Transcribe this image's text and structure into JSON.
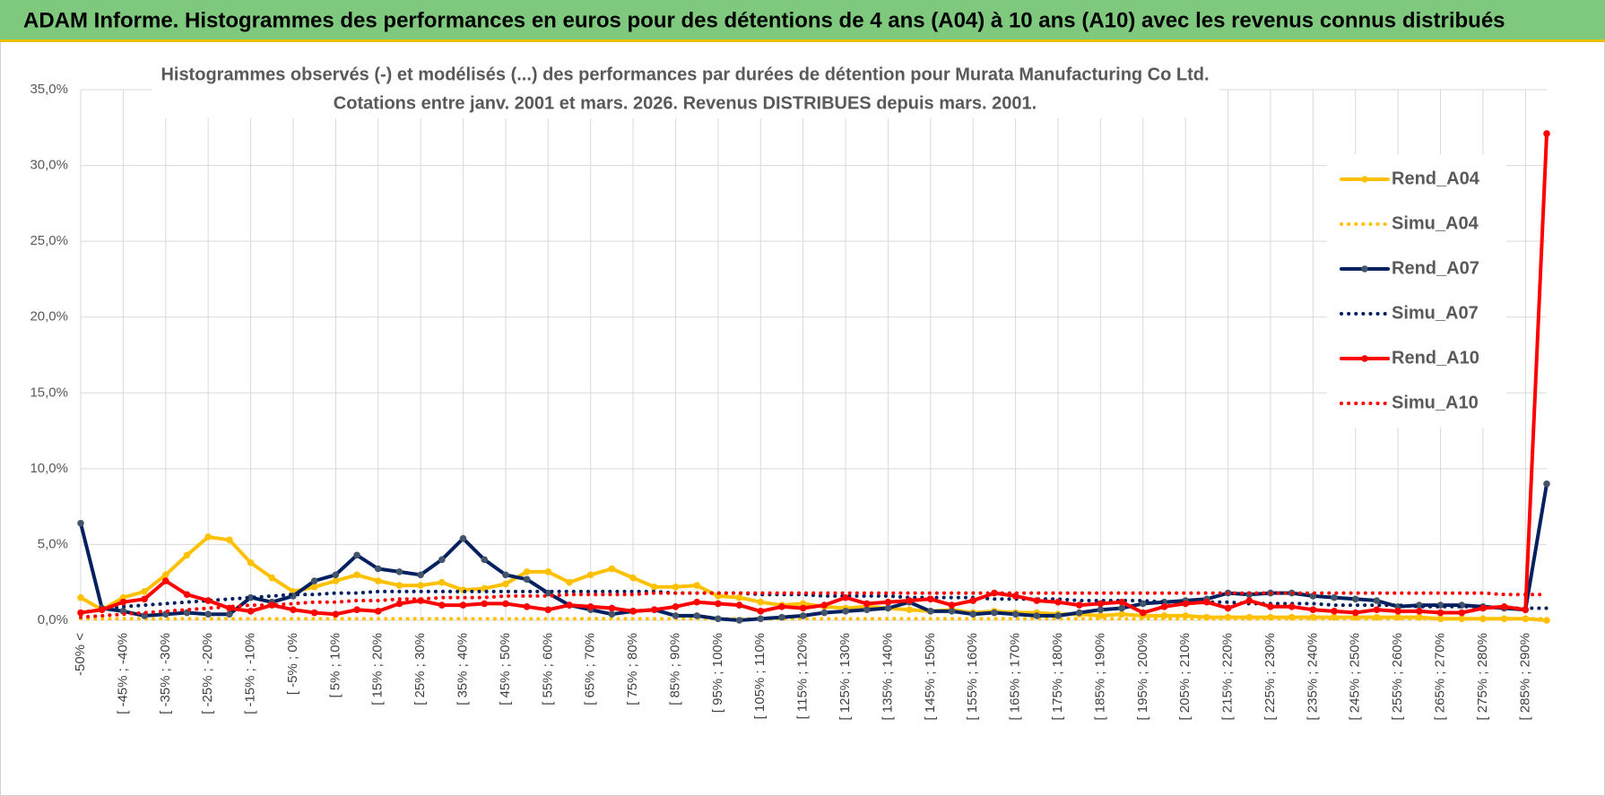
{
  "page_title": "ADAM Informe. Histogrammes des performances en euros pour des détentions de 4 ans (A04) à 10 ans (A10) avec les revenus connus distribués",
  "chart_data": {
    "type": "line",
    "title": "Histogrammes observés (-) et modélisés (...) des performances par durées de détention pour Murata Manufacturing Co Ltd.",
    "subtitle": "Cotations entre janv. 2001 et mars. 2026. Revenus DISTRIBUES depuis mars. 2001.",
    "categories": [
      "-50% <",
      null,
      "[ -45% ; -40%",
      null,
      "[ -35% ; -30%",
      null,
      "[ -25% ; -20%",
      null,
      "[ -15% ; -10%",
      null,
      "[ -5% ; 0%",
      null,
      "[ 5% ; 10%",
      null,
      "[ 15% ; 20%",
      null,
      "[ 25% ; 30%",
      null,
      "[ 35% ; 40%",
      null,
      "[ 45% ; 50%",
      null,
      "[ 55% ; 60%",
      null,
      "[ 65% ; 70%",
      null,
      "[ 75% ; 80%",
      null,
      "[ 85% ; 90%",
      null,
      "[ 95% ; 100%",
      null,
      "[ 105% ; 110%",
      null,
      "[ 115% ; 120%",
      null,
      "[ 125% ; 130%",
      null,
      "[ 135% ; 140%",
      null,
      "[ 145% ; 150%",
      null,
      "[ 155% ; 160%",
      null,
      "[ 165% ; 170%",
      null,
      "[ 175% ; 180%",
      null,
      "[ 185% ; 190%",
      null,
      "[ 195% ; 200%",
      null,
      "[ 205% ; 210%",
      null,
      "[ 215% ; 220%",
      null,
      "[ 225% ; 230%",
      null,
      "[ 235% ; 240%",
      null,
      "[ 245% ; 250%",
      null,
      "[ 255% ; 260%",
      null,
      "[ 265% ; 270%",
      null,
      "[ 275% ; 280%",
      null,
      "[ 285% ; 290%",
      null
    ],
    "ylim": [
      0,
      35
    ],
    "yticks": [
      {
        "value": 0,
        "label": "0,0%"
      },
      {
        "value": 5,
        "label": "5,0%"
      },
      {
        "value": 10,
        "label": "10,0%"
      },
      {
        "value": 15,
        "label": "15,0%"
      },
      {
        "value": 20,
        "label": "20,0%"
      },
      {
        "value": 25,
        "label": "25,0%"
      },
      {
        "value": 30,
        "label": "30,0%"
      },
      {
        "value": 35,
        "label": "35,0%"
      }
    ],
    "grid": true,
    "legend": "right",
    "series": [
      {
        "name": "Rend_A04",
        "color": "#ffc000",
        "line_style": "solid",
        "values": [
          1.5,
          0.7,
          1.5,
          1.9,
          3.0,
          4.3,
          5.5,
          5.3,
          3.8,
          2.8,
          1.9,
          2.2,
          2.6,
          3.0,
          2.6,
          2.3,
          2.3,
          2.5,
          2.0,
          2.1,
          2.4,
          3.2,
          3.2,
          2.5,
          3.0,
          3.4,
          2.8,
          2.2,
          2.2,
          2.3,
          1.6,
          1.5,
          1.2,
          1.0,
          1.1,
          0.9,
          0.8,
          0.9,
          0.8,
          0.7,
          0.6,
          0.7,
          0.5,
          0.6,
          0.5,
          0.5,
          0.4,
          0.4,
          0.3,
          0.4,
          0.3,
          0.3,
          0.3,
          0.2,
          0.2,
          0.2,
          0.2,
          0.2,
          0.2,
          0.2,
          0.2,
          0.2,
          0.2,
          0.2,
          0.1,
          0.1,
          0.1,
          0.1,
          0.1,
          0.0
        ]
      },
      {
        "name": "Simu_A04",
        "color": "#ffc000",
        "line_style": "dotted",
        "values": [
          0.1,
          0.1,
          0.1,
          0.1,
          0.1,
          0.1,
          0.1,
          0.1,
          0.1,
          0.1,
          0.1,
          0.1,
          0.1,
          0.1,
          0.1,
          0.1,
          0.1,
          0.1,
          0.1,
          0.1,
          0.1,
          0.1,
          0.1,
          0.1,
          0.1,
          0.1,
          0.1,
          0.1,
          0.1,
          0.1,
          0.1,
          0.1,
          0.1,
          0.1,
          0.1,
          0.1,
          0.1,
          0.1,
          0.1,
          0.1,
          0.1,
          0.1,
          0.1,
          0.1,
          0.1,
          0.1,
          0.1,
          0.1,
          0.1,
          0.1,
          0.1,
          0.1,
          0.1,
          0.1,
          0.1,
          0.1,
          0.1,
          0.1,
          0.1,
          0.1,
          0.1,
          0.1,
          0.1,
          0.1,
          0.1,
          0.1,
          0.1,
          0.1,
          0.1,
          0.1
        ]
      },
      {
        "name": "Rend_A07",
        "color": "#002060",
        "line_style": "solid",
        "values": [
          6.4,
          0.8,
          0.6,
          0.3,
          0.4,
          0.5,
          0.4,
          0.4,
          1.5,
          1.2,
          1.6,
          2.6,
          3.0,
          4.3,
          3.4,
          3.2,
          3.0,
          4.0,
          5.4,
          4.0,
          3.0,
          2.7,
          1.8,
          1.0,
          0.7,
          0.4,
          0.6,
          0.7,
          0.3,
          0.3,
          0.1,
          0.0,
          0.1,
          0.2,
          0.3,
          0.5,
          0.6,
          0.7,
          0.8,
          1.2,
          0.6,
          0.6,
          0.4,
          0.5,
          0.4,
          0.3,
          0.3,
          0.5,
          0.7,
          0.8,
          1.1,
          1.2,
          1.3,
          1.4,
          1.8,
          1.7,
          1.8,
          1.8,
          1.6,
          1.5,
          1.4,
          1.3,
          0.9,
          1.0,
          1.0,
          1.0,
          0.9,
          0.8,
          0.7,
          9.0
        ]
      },
      {
        "name": "Simu_A07",
        "color": "#002060",
        "line_style": "dotted",
        "values": [
          0.5,
          0.7,
          0.9,
          1.0,
          1.1,
          1.2,
          1.3,
          1.4,
          1.5,
          1.6,
          1.7,
          1.7,
          1.8,
          1.8,
          1.9,
          1.9,
          1.9,
          1.9,
          1.9,
          1.9,
          1.9,
          1.9,
          1.9,
          1.9,
          1.9,
          1.9,
          1.9,
          1.9,
          1.8,
          1.8,
          1.8,
          1.8,
          1.7,
          1.7,
          1.7,
          1.6,
          1.6,
          1.6,
          1.6,
          1.5,
          1.5,
          1.5,
          1.5,
          1.4,
          1.4,
          1.4,
          1.4,
          1.3,
          1.3,
          1.3,
          1.3,
          1.2,
          1.2,
          1.2,
          1.2,
          1.1,
          1.1,
          1.1,
          1.1,
          1.0,
          1.0,
          1.0,
          1.0,
          0.9,
          0.9,
          0.9,
          0.9,
          0.8,
          0.8,
          0.8
        ]
      },
      {
        "name": "Rend_A10",
        "color": "#ff0000",
        "line_style": "solid",
        "values": [
          0.5,
          0.7,
          1.2,
          1.4,
          2.6,
          1.7,
          1.3,
          0.8,
          0.6,
          1.0,
          0.7,
          0.5,
          0.4,
          0.7,
          0.6,
          1.1,
          1.3,
          1.0,
          1.0,
          1.1,
          1.1,
          0.9,
          0.7,
          1.0,
          0.9,
          0.8,
          0.6,
          0.7,
          0.9,
          1.2,
          1.1,
          1.0,
          0.6,
          0.9,
          0.8,
          1.0,
          1.5,
          1.1,
          1.2,
          1.3,
          1.4,
          1.0,
          1.3,
          1.8,
          1.6,
          1.3,
          1.2,
          1.0,
          1.1,
          1.2,
          0.5,
          0.9,
          1.1,
          1.2,
          0.8,
          1.3,
          0.9,
          0.9,
          0.7,
          0.6,
          0.5,
          0.7,
          0.6,
          0.6,
          0.5,
          0.5,
          0.8,
          0.9,
          0.7,
          32.1
        ]
      },
      {
        "name": "Simu_A10",
        "color": "#ff0000",
        "line_style": "dotted",
        "values": [
          0.2,
          0.3,
          0.4,
          0.5,
          0.6,
          0.7,
          0.8,
          0.9,
          1.0,
          1.0,
          1.1,
          1.2,
          1.2,
          1.3,
          1.3,
          1.4,
          1.4,
          1.5,
          1.5,
          1.5,
          1.6,
          1.6,
          1.6,
          1.7,
          1.7,
          1.7,
          1.7,
          1.8,
          1.8,
          1.8,
          1.8,
          1.8,
          1.8,
          1.8,
          1.8,
          1.8,
          1.8,
          1.8,
          1.8,
          1.8,
          1.8,
          1.8,
          1.8,
          1.8,
          1.8,
          1.8,
          1.8,
          1.8,
          1.8,
          1.8,
          1.8,
          1.8,
          1.8,
          1.8,
          1.8,
          1.8,
          1.8,
          1.8,
          1.8,
          1.8,
          1.8,
          1.8,
          1.8,
          1.8,
          1.8,
          1.8,
          1.8,
          1.7,
          1.7,
          1.7
        ]
      }
    ]
  }
}
